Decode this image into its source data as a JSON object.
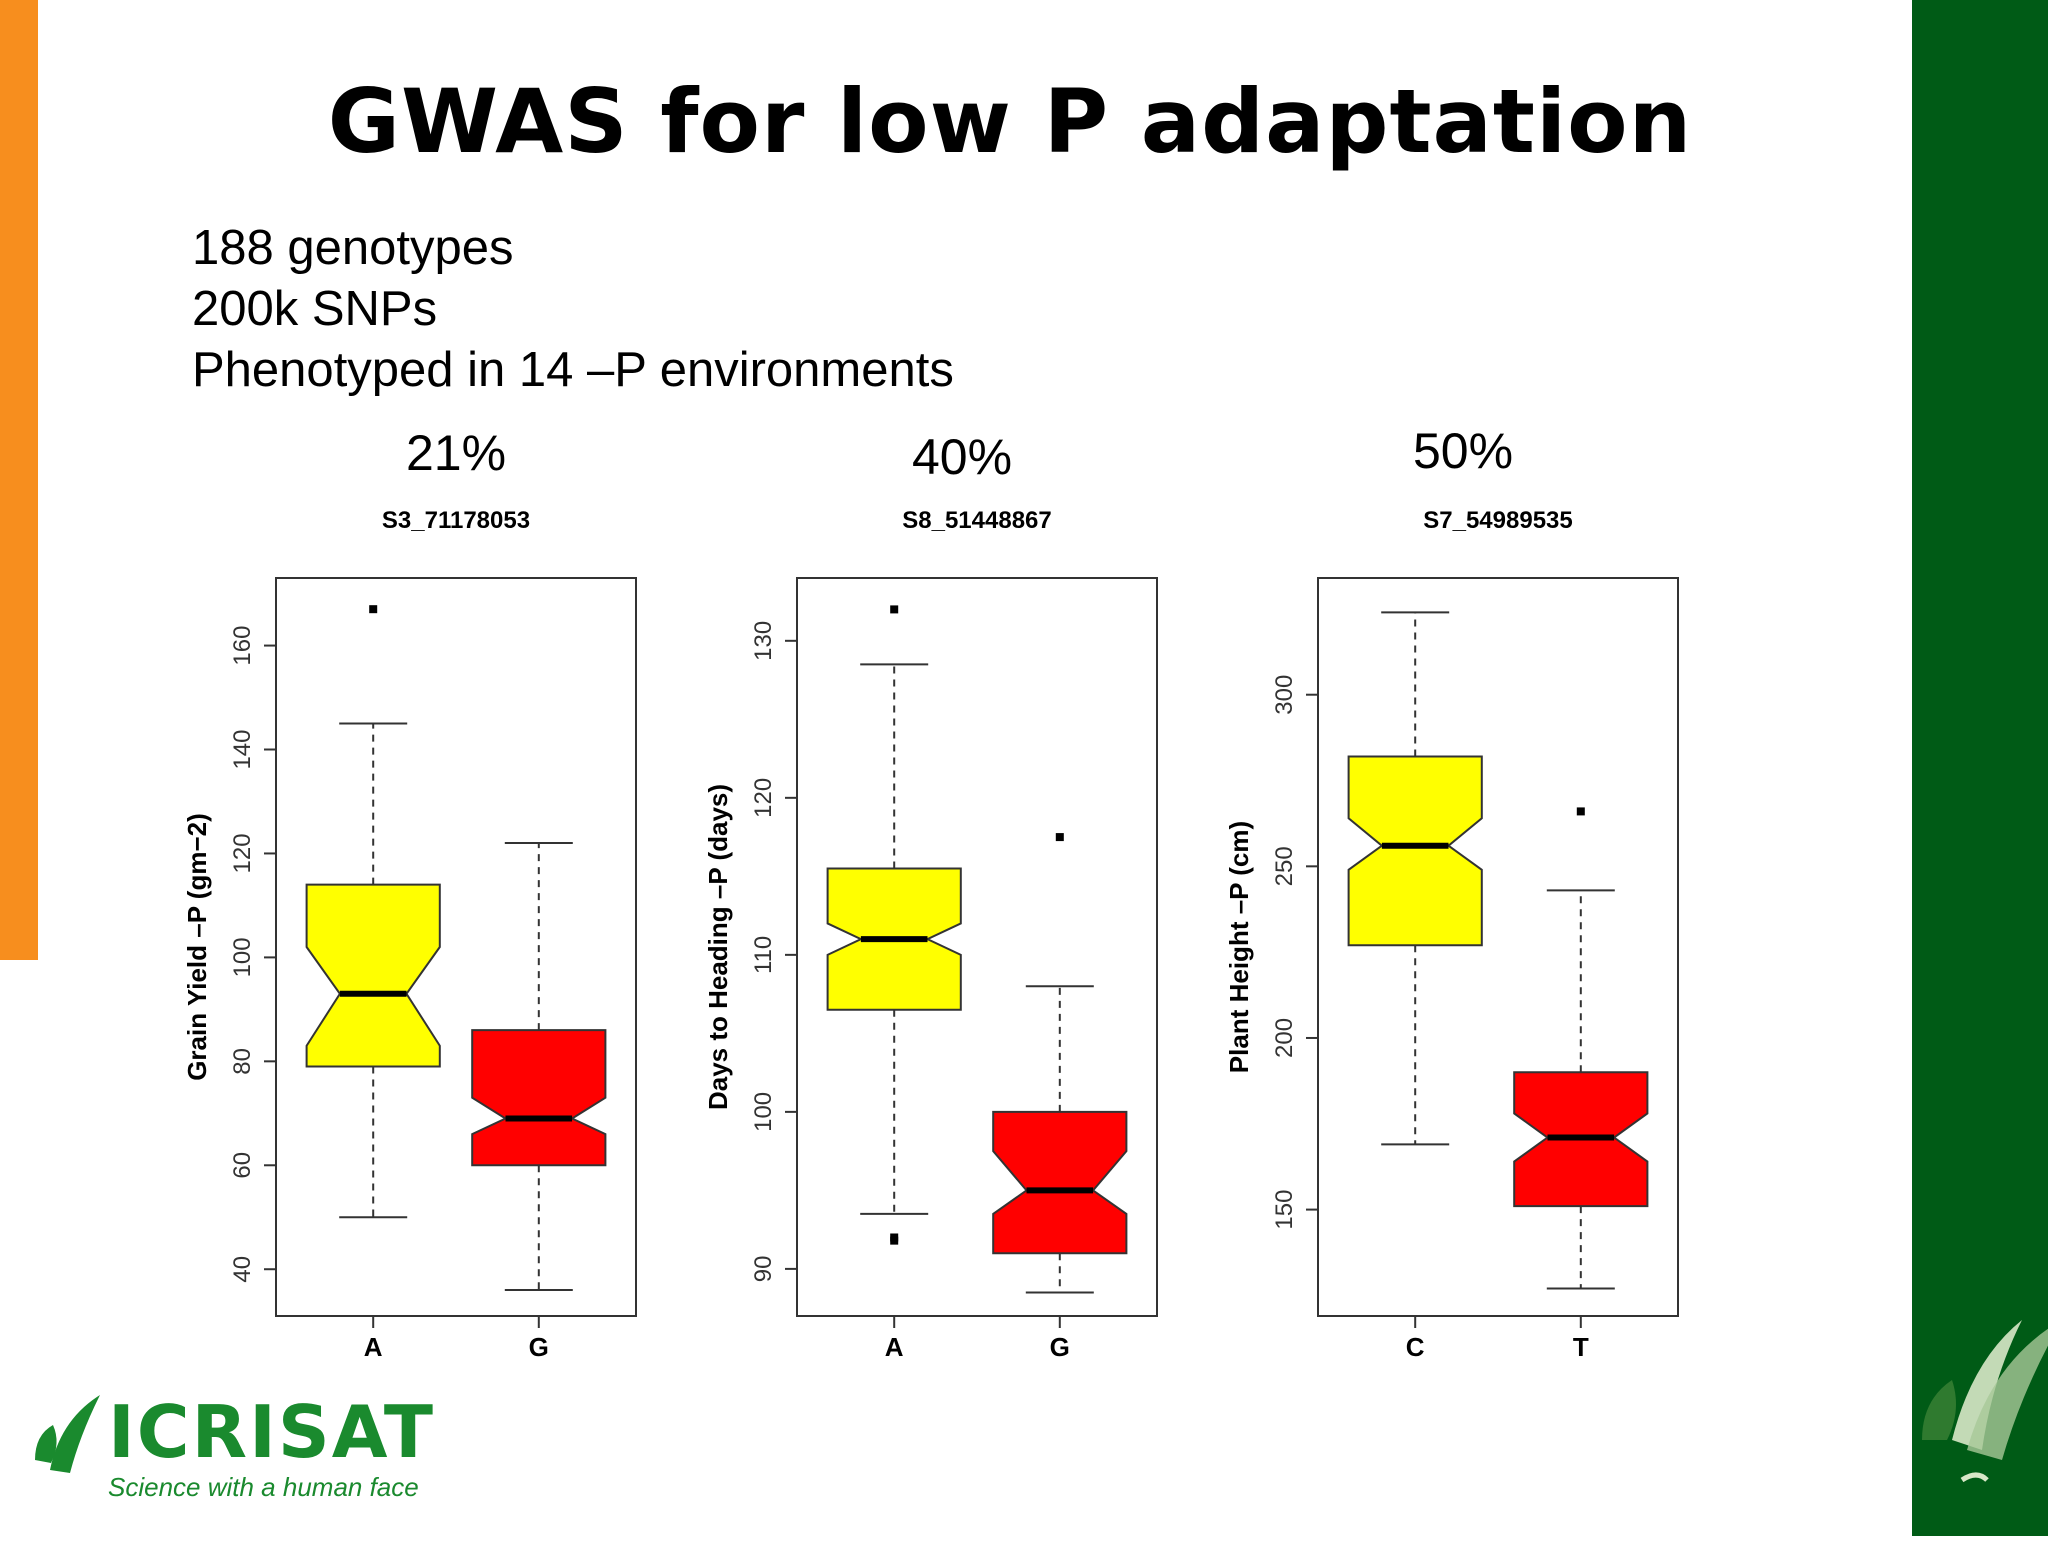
{
  "slide": {
    "title": "GWAS for low P adaptation",
    "bullets": [
      "188 genotypes",
      "200k SNPs",
      "Phenotyped in 14 –P environments"
    ],
    "logo": {
      "name": "ICRISAT",
      "tagline": "Science with a human face"
    }
  },
  "colors": {
    "allele1": "#ffff00",
    "allele2": "#ff0000",
    "left_accent": "#f78e1e",
    "right_accent": "#005b16",
    "logo": "#1a8a2e"
  },
  "chart_data": [
    {
      "type": "boxplot",
      "percent_label": "21%",
      "title": "S3_71178053",
      "ylabel": "Grain Yield –P (gm−2)",
      "ylim": [
        31,
        173
      ],
      "yticks": [
        40,
        60,
        80,
        100,
        120,
        140,
        160
      ],
      "categories": [
        "A",
        "G"
      ],
      "boxes": [
        {
          "category": "A",
          "min": 50,
          "q1": 79,
          "median": 93,
          "q3": 114,
          "max": 145,
          "notch_low": 83,
          "notch_high": 102,
          "outliers": [
            167
          ]
        },
        {
          "category": "G",
          "min": 36,
          "q1": 60,
          "median": 69,
          "q3": 86,
          "max": 122,
          "notch_low": 66,
          "notch_high": 73,
          "outliers": []
        }
      ]
    },
    {
      "type": "boxplot",
      "percent_label": "40%",
      "title": "S8_51448867",
      "ylabel": "Days to Heading –P (days)",
      "ylim": [
        87,
        134
      ],
      "yticks": [
        90,
        100,
        110,
        120,
        130
      ],
      "categories": [
        "A",
        "G"
      ],
      "boxes": [
        {
          "category": "A",
          "min": 93.5,
          "q1": 106.5,
          "median": 111,
          "q3": 115.5,
          "max": 128.5,
          "notch_low": 110,
          "notch_high": 112,
          "outliers": [
            132,
            92,
            91.8
          ]
        },
        {
          "category": "G",
          "min": 88.5,
          "q1": 91,
          "median": 95,
          "q3": 100,
          "max": 108,
          "notch_low": 93.5,
          "notch_high": 97.5,
          "outliers": [
            117.5
          ]
        }
      ]
    },
    {
      "type": "boxplot",
      "percent_label": "50%",
      "title": "S7_54989535",
      "ylabel": "Plant Height –P (cm)",
      "ylim": [
        119,
        334
      ],
      "yticks": [
        150,
        200,
        250,
        300
      ],
      "categories": [
        "C",
        "T"
      ],
      "boxes": [
        {
          "category": "C",
          "min": 169,
          "q1": 227,
          "median": 256,
          "q3": 282,
          "max": 324,
          "notch_low": 249,
          "notch_high": 264,
          "outliers": []
        },
        {
          "category": "T",
          "min": 127,
          "q1": 151,
          "median": 171,
          "q3": 190,
          "max": 243,
          "notch_low": 164,
          "notch_high": 178,
          "outliers": [
            266
          ]
        }
      ]
    }
  ]
}
